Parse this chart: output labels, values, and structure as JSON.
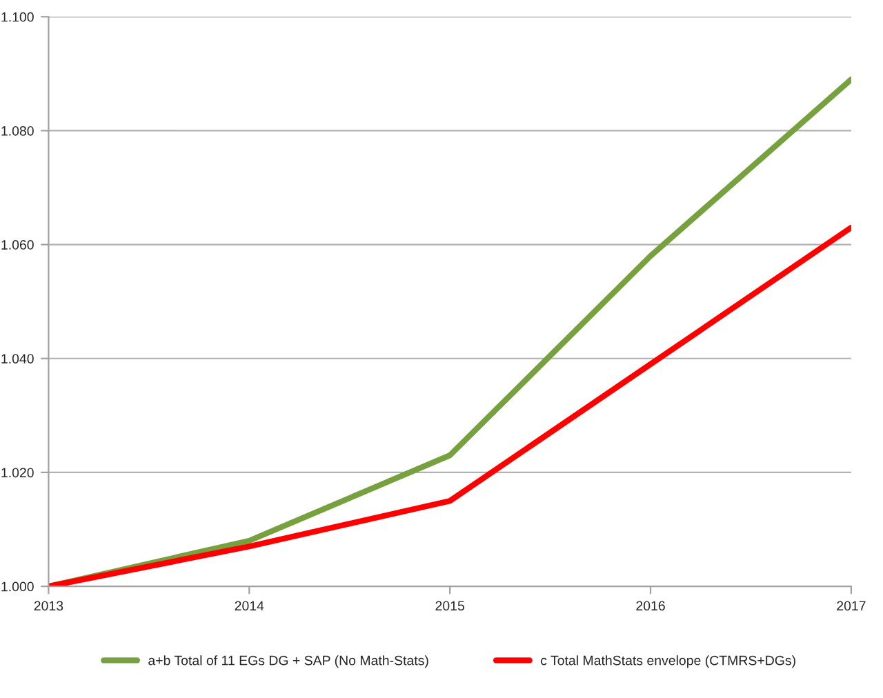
{
  "chart_data": {
    "type": "line",
    "x": [
      2013,
      2014,
      2015,
      2016,
      2017
    ],
    "series": [
      {
        "name": "a+b Total of 11 EGs DG + SAP (No Math-Stats)",
        "color": "#77a03f",
        "values": [
          1.0,
          1.008,
          1.023,
          1.058,
          1.089
        ]
      },
      {
        "name": "c Total MathStats envelope (CTMRS+DGs)",
        "color": "#ff0000",
        "values": [
          1.0,
          1.007,
          1.015,
          1.039,
          1.063
        ]
      }
    ],
    "xlim": [
      2013,
      2017
    ],
    "xticks": [
      2013,
      2014,
      2015,
      2016,
      2017
    ],
    "ylim": [
      1.0,
      1.1
    ],
    "yticks": [
      {
        "value": 1.0,
        "label": "1.000"
      },
      {
        "value": 1.02,
        "label": "1.020"
      },
      {
        "value": 1.04,
        "label": "1.040"
      },
      {
        "value": 1.06,
        "label": "1.060"
      },
      {
        "value": 1.08,
        "label": "1.080"
      },
      {
        "value": 1.1,
        "label": "1.100"
      }
    ],
    "grid": "y",
    "legend": "bottom",
    "marker": "none",
    "line_style": "solid"
  }
}
